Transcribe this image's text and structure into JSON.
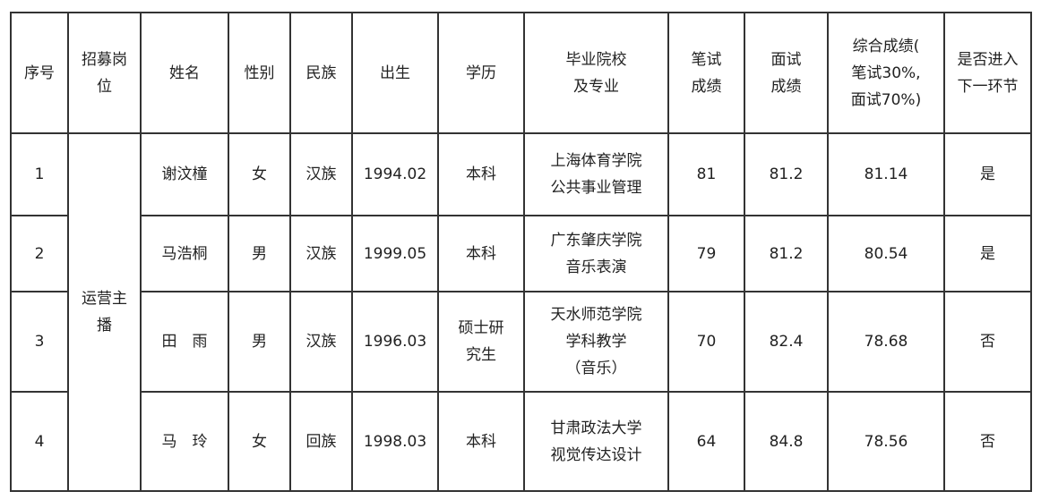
{
  "headers": [
    "序号",
    "招募岗\n位",
    "姓名",
    "性别",
    "民族",
    "出生",
    "学历",
    "毕业院校\n及专业",
    "笔试\n成绩",
    "面试\n成绩",
    "综合成绩(\n笔试30%,\n面试70%)",
    "是否进入\n下一环节"
  ],
  "position": "运营主\n播",
  "rows": [
    {
      "no": "1",
      "name": "谢汶橦",
      "gender": "女",
      "ethnicity": "汉族",
      "birth": "1994.02",
      "education": "本科",
      "school": "上海体育学院\n公共事业管理",
      "written": "81",
      "interview": "81.2",
      "total": "81.14",
      "advance": "是"
    },
    {
      "no": "2",
      "name": "马浩桐",
      "gender": "男",
      "ethnicity": "汉族",
      "birth": "1999.05",
      "education": "本科",
      "school": "广东肇庆学院\n音乐表演",
      "written": "79",
      "interview": "81.2",
      "total": "80.54",
      "advance": "是"
    },
    {
      "no": "3",
      "name": "田　雨",
      "gender": "男",
      "ethnicity": "汉族",
      "birth": "1996.03",
      "education": "硕士研\n究生",
      "school": "天水师范学院\n学科教学\n（音乐）",
      "written": "70",
      "interview": "82.4",
      "total": "78.68",
      "advance": "否"
    },
    {
      "no": "4",
      "name": "马　玲",
      "gender": "女",
      "ethnicity": "回族",
      "birth": "1998.03",
      "education": "本科",
      "school": "甘肃政法大学\n视觉传达设计",
      "written": "64",
      "interview": "84.8",
      "total": "78.56",
      "advance": "否"
    }
  ]
}
